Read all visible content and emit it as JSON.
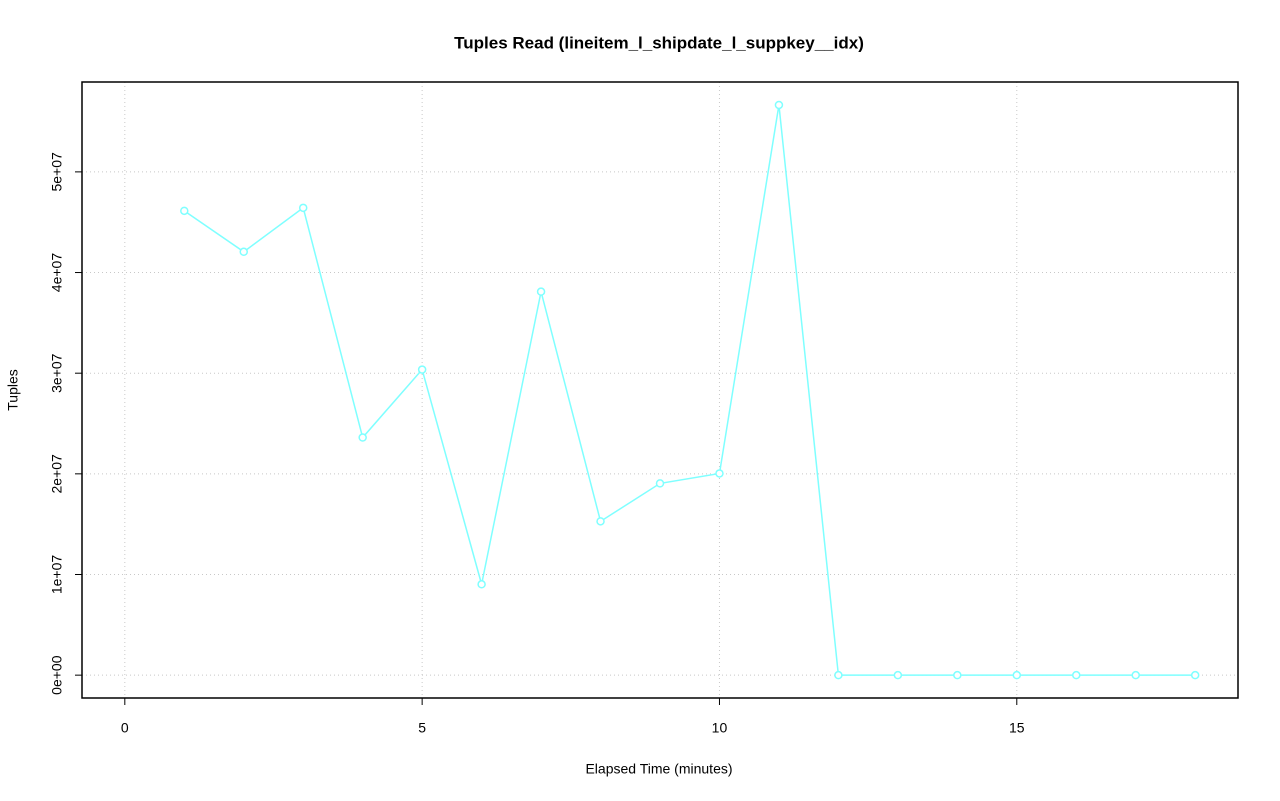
{
  "chart_data": {
    "type": "line",
    "title": "Tuples Read (lineitem_l_shipdate_l_suppkey__idx)",
    "x_label": "Elapsed Time (minutes)",
    "y_label": "Tuples",
    "x": [
      1,
      2,
      3,
      4,
      5,
      6,
      7,
      8,
      9,
      10,
      11,
      12,
      13,
      14,
      15,
      16,
      17,
      18
    ],
    "series": [
      {
        "color": "#7fffff",
        "values": [
          46130000,
          42060000,
          46430000,
          23610000,
          30360000,
          9030000,
          38100000,
          15280000,
          19050000,
          20040000,
          56650000,
          0,
          0,
          0,
          0,
          0,
          0,
          0
        ]
      }
    ],
    "xlim": [
      -0.72,
      18.72
    ],
    "ylim": [
      -2270000,
      58930000
    ],
    "xticks": [
      0,
      5,
      10,
      15
    ],
    "yticks": [
      {
        "value": 0,
        "label": "0e+00"
      },
      {
        "value": 10000000,
        "label": "1e+07"
      },
      {
        "value": 20000000,
        "label": "2e+07"
      },
      {
        "value": 30000000,
        "label": "3e+07"
      },
      {
        "value": 40000000,
        "label": "4e+07"
      },
      {
        "value": 50000000,
        "label": "5e+07"
      }
    ],
    "grid": true
  }
}
